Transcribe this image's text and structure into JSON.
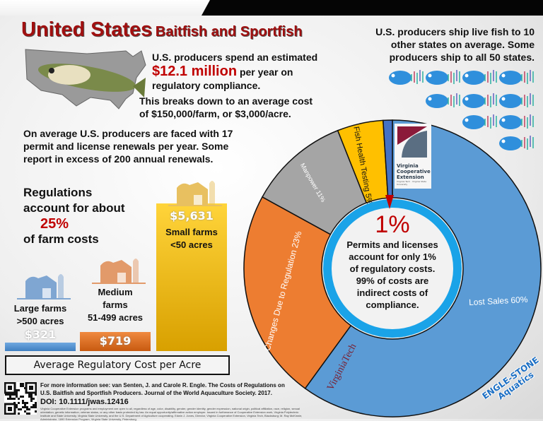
{
  "title": {
    "main": "United States",
    "sub": "Baitfish and Sportfish"
  },
  "spend": {
    "line1": "U.S. producers spend an estimated",
    "amount": "$12.1 million",
    "line2": "per year on",
    "line3": "regulatory compliance."
  },
  "breakdown": {
    "line1": "This breaks down to an average cost",
    "line2": "of $150,000/farm, or $3,000/acre."
  },
  "permits_text": {
    "line1": "On average U.S. producers are faced with 17",
    "line2": "permit and license renewals per year. Some",
    "line3": "report in excess of 200 annual renewals."
  },
  "regulations": {
    "line1": "Regulations",
    "line2": "account for about",
    "pct": "25%",
    "line3": "of farm costs"
  },
  "shipping": {
    "line1": "U.S. producers ship live fish to 10",
    "line2": "other states on average. Some",
    "line3": "producers ship to all 50 states.",
    "fish_count": 10
  },
  "chart_data": [
    {
      "type": "bar",
      "title": "Average Regulatory Cost per Acre",
      "categories": [
        "Large farms >500 acres",
        "Medium farms 51-499 acres",
        "Small farms <50 acres"
      ],
      "labels": [
        [
          "Large farms",
          ">500 acres"
        ],
        [
          "Medium",
          "farms",
          "51-499 acres"
        ],
        [
          "Small farms",
          "<50 acres"
        ]
      ],
      "values": [
        321,
        719,
        5631
      ],
      "value_labels": [
        "$321",
        "$719",
        "$5,631"
      ],
      "colors": [
        "#5b9bd5",
        "#ed7d31",
        "#f5c518"
      ]
    },
    {
      "type": "pie",
      "variant": "donut",
      "slices": [
        {
          "label": "Lost Sales 60%",
          "value": 60,
          "color": "#5b9bd5"
        },
        {
          "label": "Changes Due to Regulation 23%",
          "value": 23,
          "color": "#ed7d31"
        },
        {
          "label": "Manpower 11%",
          "value": 11,
          "color": "#a5a5a5"
        },
        {
          "label": "Fish Health Testing 5%",
          "value": 5,
          "color": "#ffc000"
        },
        {
          "label": "Permits and licenses 1%",
          "value": 1,
          "color": "#4472c4"
        }
      ]
    }
  ],
  "donut_center": {
    "pct": "1%",
    "line1": "Permits and licenses",
    "line2": "account for only 1%",
    "line3": "of regulatory costs.",
    "line4": "99% of costs are",
    "line5": "indirect costs of",
    "line6": "compliance."
  },
  "logos": {
    "vce": "Virginia Cooperative Extension",
    "vce_sub": "Virginia Tech · Virginia State University",
    "vt": "VirginiaTech",
    "engle": "ENGLE-STONE Aquatics"
  },
  "footer": {
    "line1": "For more information see: van Senten, J. and Carole R. Engle. The Costs of Regulations on",
    "line2": "U.S. Baitfish and Sportfish Producers. Journal of the World Aquaculture Society. 2017.",
    "doi": "DOI: 10.1111/jwas.12416",
    "fine": "Virginia Cooperative Extension programs and employment are open to all, regardless of age, color, disability, gender, gender identity, gender expression, national origin, political affiliation, race, religion, sexual orientation, genetic information, veteran status, or any other basis protected by law. An equal opportunity/affirmative action employer. Issued in furtherance of Cooperative Extension work, Virginia Polytechnic Institute and State University, Virginia State University, and the U.S. Department of Agriculture cooperating. Edwin J. Jones, Director, Virginia Cooperative Extension, Virginia Tech, Blacksburg; M. Ray McKinnie, Administrator, 1890 Extension Program, Virginia State University, Petersburg."
  },
  "colors": {
    "title": "#a01010",
    "accent_red": "#c00000",
    "ring": "#1aa3e8"
  }
}
